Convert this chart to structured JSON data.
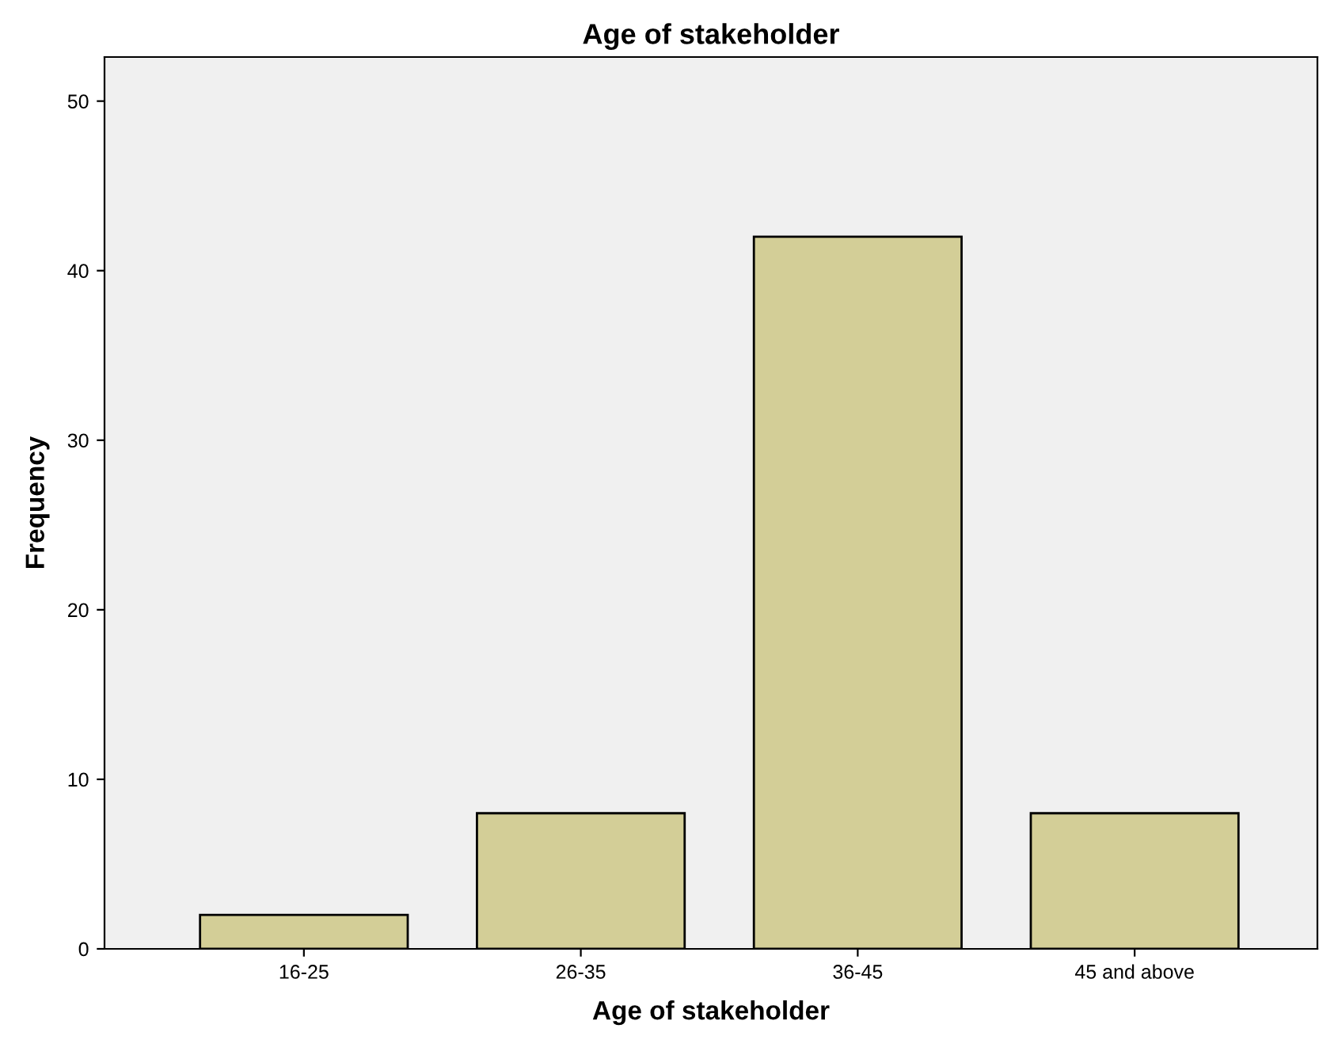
{
  "chart_data": {
    "type": "bar",
    "title": "Age of stakeholder",
    "xlabel": "Age of stakeholder",
    "ylabel": "Frequency",
    "categories": [
      "16-25",
      "26-35",
      "36-45",
      "45 and above"
    ],
    "values": [
      2,
      8,
      42,
      8
    ],
    "color": "#d3ce97",
    "ylim": [
      0,
      52.6
    ],
    "yticks": [
      0,
      10,
      20,
      30,
      40,
      50
    ],
    "grid": false
  }
}
